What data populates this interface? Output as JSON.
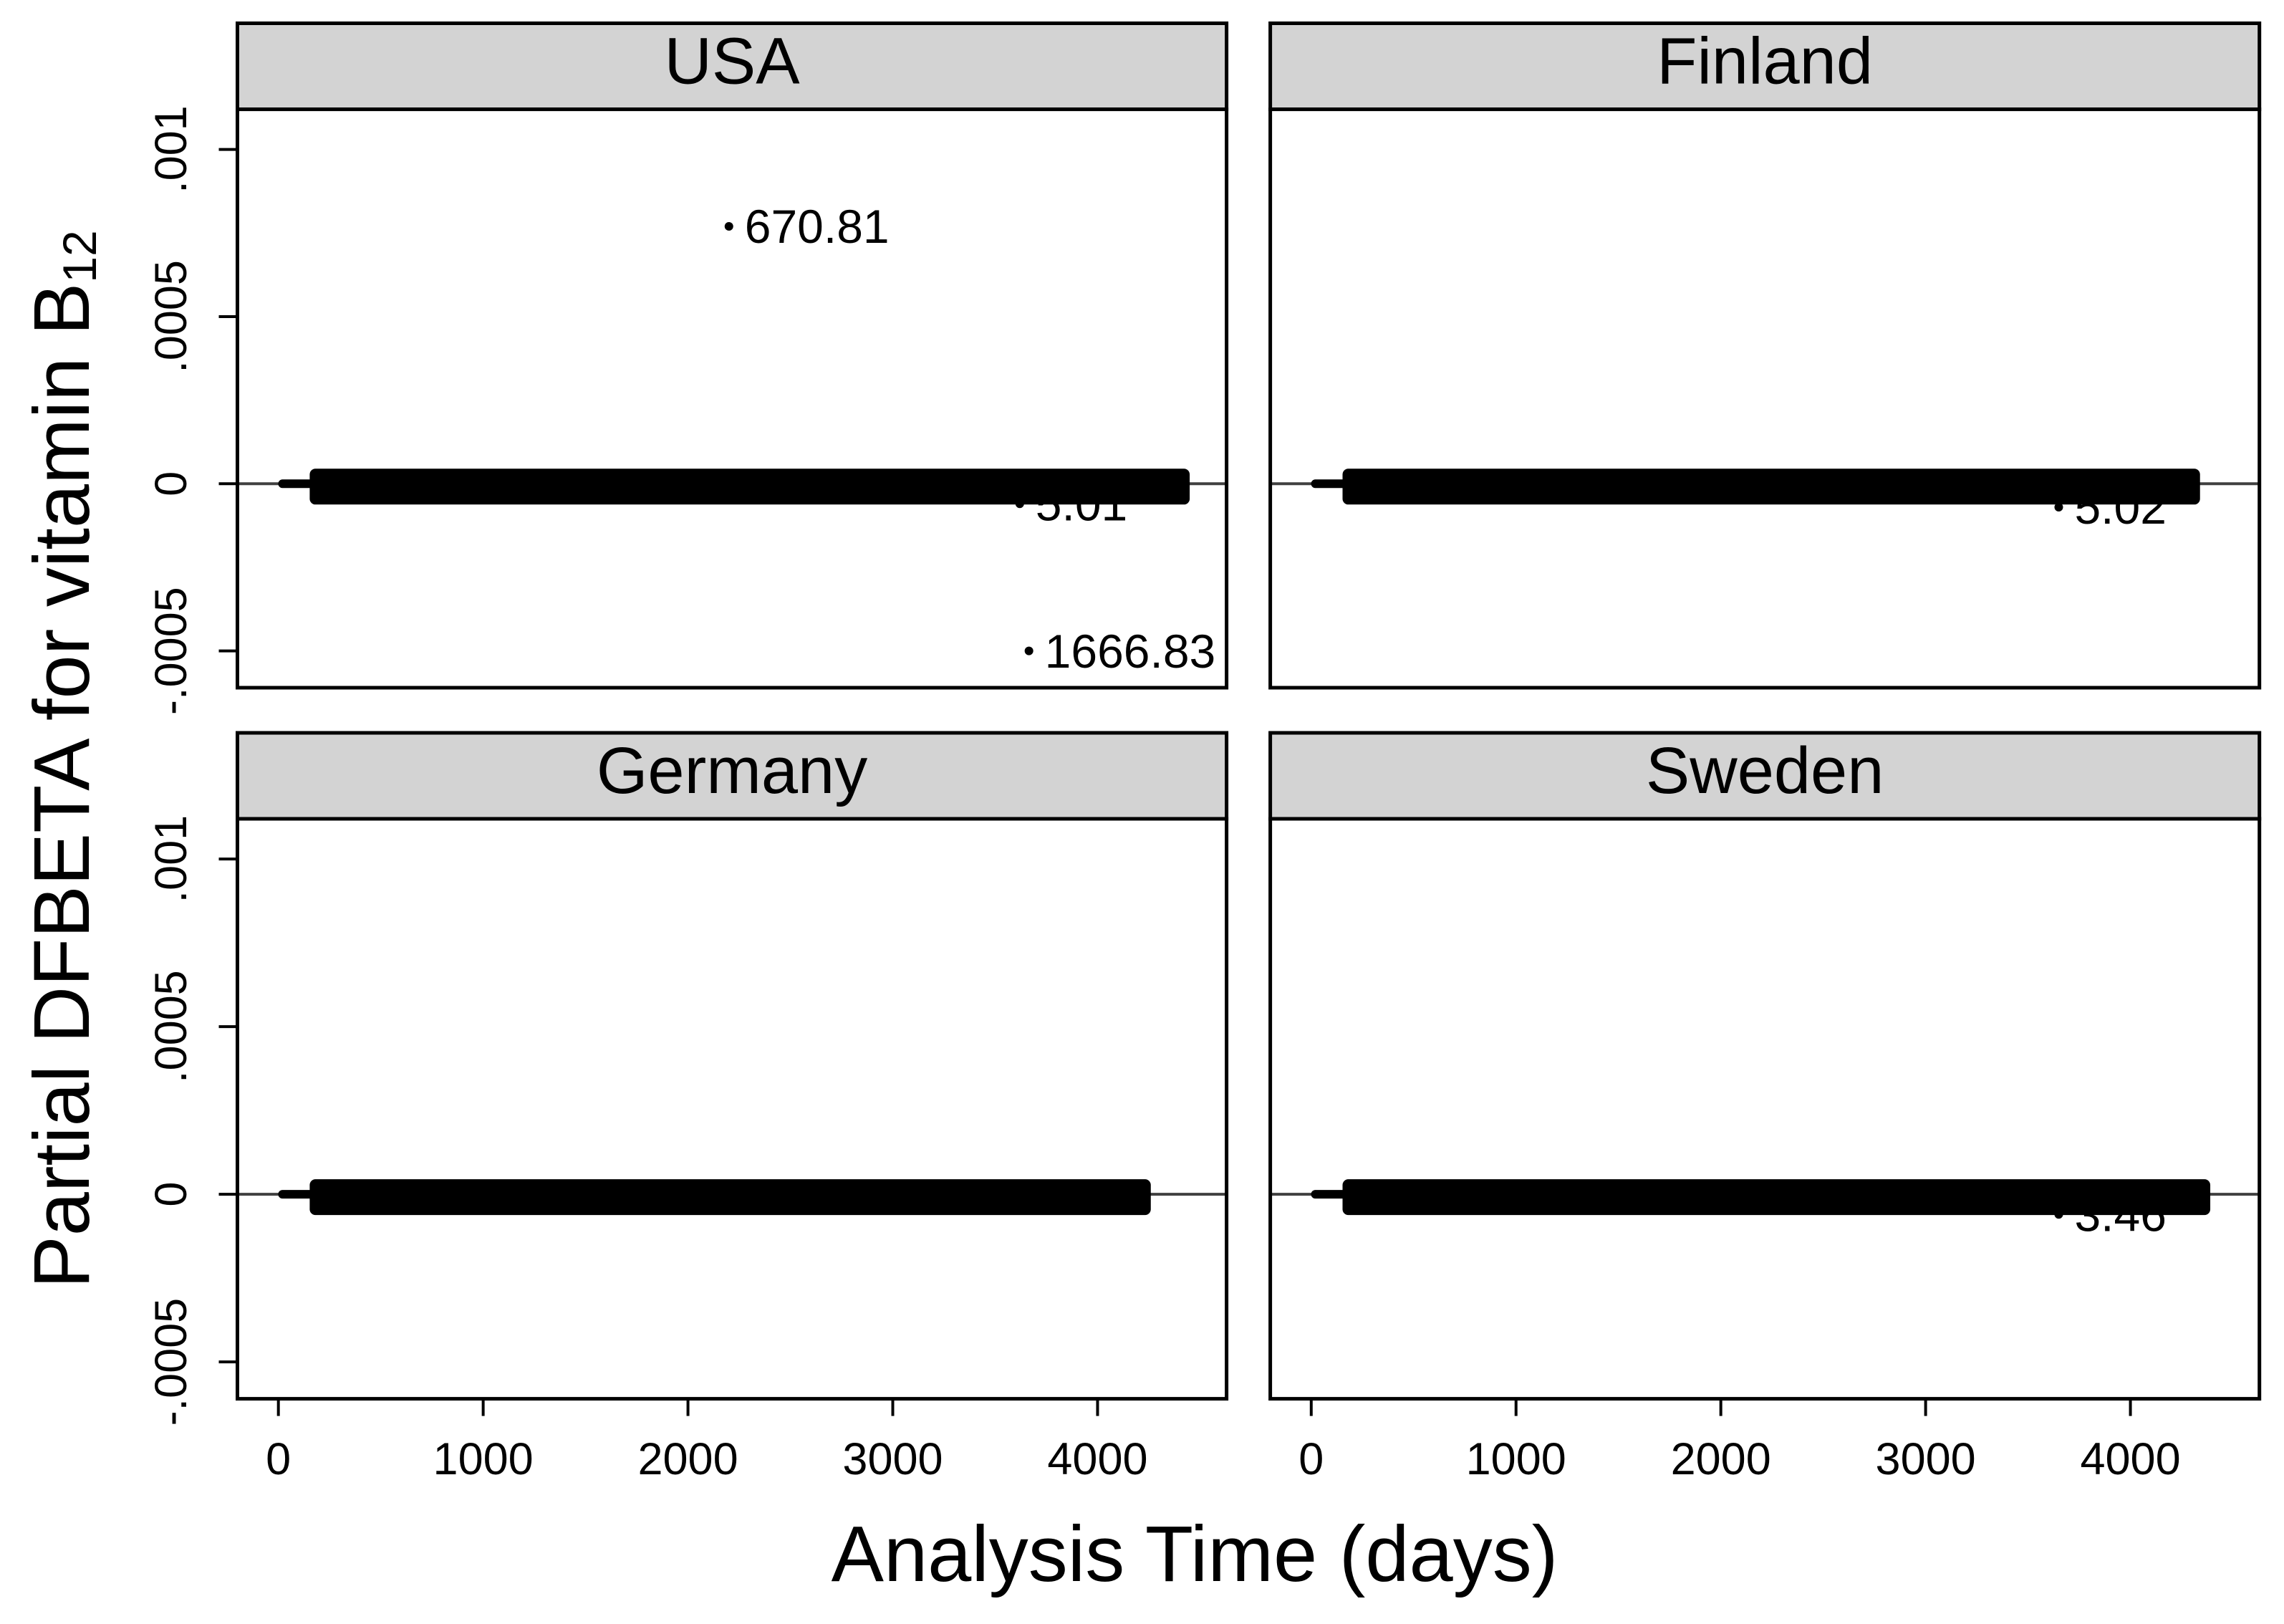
{
  "chart_data": {
    "type": "scatter",
    "xlabel": "Analysis Time (days)",
    "ylabel": "Partial DFBETA for vitamin B",
    "ylabel_subscript": "12",
    "xlim": [
      -200,
      4630
    ],
    "ylim": [
      -0.00061,
      0.00112
    ],
    "xticks": [
      0,
      1000,
      2000,
      3000,
      4000
    ],
    "xtick_labels": [
      "0",
      "1000",
      "2000",
      "3000",
      "4000"
    ],
    "yticks": [
      0.001,
      0.0005,
      0,
      -0.0005
    ],
    "ytick_labels": [
      ".001",
      ".0005",
      "0",
      "-.0005"
    ],
    "reference_line": {
      "y": 0
    },
    "grid": false,
    "colors": {
      "header_fill": "#d3d3d3",
      "marker": "#000000",
      "reference_line": "#404040"
    },
    "panels": [
      {
        "title": "USA",
        "labeled_points": [
          {
            "x": 2200,
            "y": 0.00077,
            "label": "670.81"
          },
          {
            "x": 3665,
            "y": -0.0005,
            "label": "1666.83"
          },
          {
            "x": 3620,
            "y": -6e-05,
            "label": "5.01"
          }
        ],
        "dense_cluster": {
          "x_range": [
            20,
            4310
          ],
          "y": 0
        }
      },
      {
        "title": "Finland",
        "labeled_points": [
          {
            "x": 3650,
            "y": -7e-05,
            "label": "5.02"
          }
        ],
        "dense_cluster": {
          "x_range": [
            20,
            4200
          ],
          "y": 0
        }
      },
      {
        "title": "Germany",
        "labeled_points": [],
        "dense_cluster": {
          "x_range": [
            20,
            4120
          ],
          "y": 0
        }
      },
      {
        "title": "Sweden",
        "labeled_points": [
          {
            "x": 3650,
            "y": -6e-05,
            "label": "3.46"
          }
        ],
        "dense_cluster": {
          "x_range": [
            20,
            4250
          ],
          "y": 0
        }
      }
    ]
  }
}
